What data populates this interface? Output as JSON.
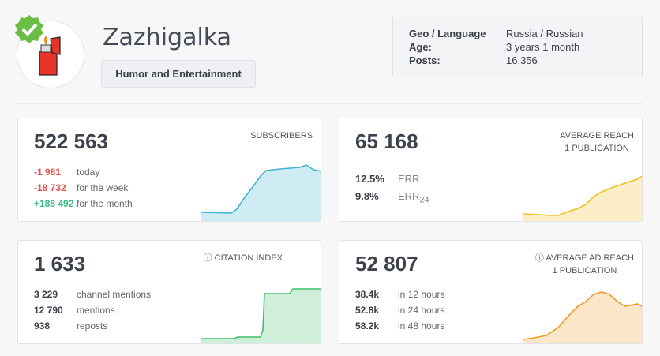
{
  "channel": {
    "name": "Zazhigalka",
    "category": "Humor and Entertainment",
    "verified": true,
    "avatar": "red-lighter-icon"
  },
  "info": [
    {
      "key": "Geo / Language",
      "value": "Russia / Russian"
    },
    {
      "key": "Age:",
      "value": "3 years 1 month"
    },
    {
      "key": "Posts:",
      "value": "16,356"
    }
  ],
  "subscribers": {
    "value": "522 563",
    "label": "SUBSCRIBERS",
    "stats": [
      {
        "v": "-1 981",
        "d": "today"
      },
      {
        "v": "-18 732",
        "d": "for the week"
      },
      {
        "v": "+188 492",
        "d": "for the month"
      }
    ],
    "color": "#3fb3d8"
  },
  "reach": {
    "value": "65 168",
    "label1": "AVERAGE REACH",
    "label2": "1 PUBLICATION",
    "stats": [
      {
        "v": "12.5%",
        "d": "ERR"
      },
      {
        "v": "9.8%",
        "d": "ERR",
        "sub": "24"
      }
    ],
    "color": "#f2bf1f"
  },
  "citation": {
    "value": "1 633",
    "label": "CITATION INDEX",
    "stats": [
      {
        "v": "3 229",
        "d": "channel mentions"
      },
      {
        "v": "12 790",
        "d": "mentions"
      },
      {
        "v": "938",
        "d": "reposts"
      }
    ],
    "color": "#3fbf6a"
  },
  "adreach": {
    "value": "52 807",
    "label1": "AVERAGE AD REACH",
    "label2": "1 PUBLICATION",
    "stats": [
      {
        "v": "38.4k",
        "d": "in 12 hours"
      },
      {
        "v": "52.8k",
        "d": "in 24 hours"
      },
      {
        "v": "58.2k",
        "d": "in 48 hours"
      }
    ],
    "color": "#f09a2a"
  }
}
